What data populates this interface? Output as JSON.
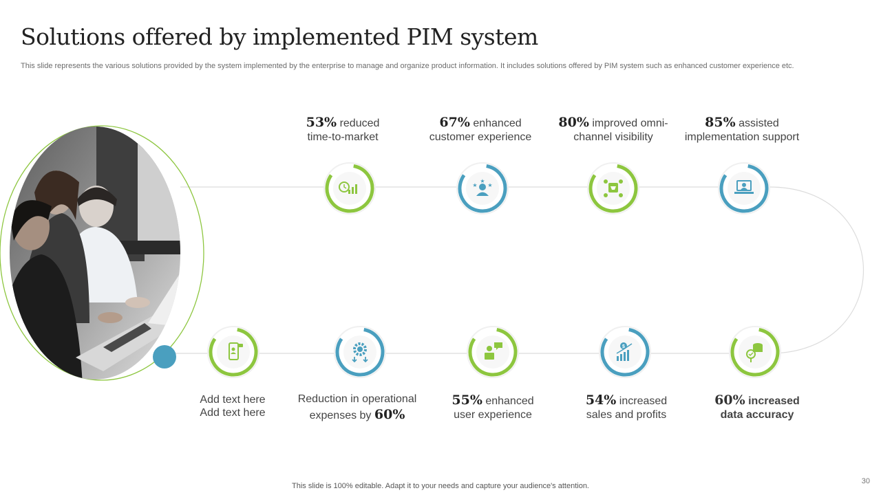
{
  "title": "Solutions offered by implemented PIM system",
  "subtitle": "This slide represents the various solutions provided by the system implemented by the enterprise to manage and organize product information. It includes solutions offered by PIM system such as enhanced customer experience etc.",
  "colors": {
    "green": "#8dc63f",
    "blue": "#4a9fbf",
    "line": "#d9d9d9",
    "dot": "#4a9fbf"
  },
  "top_items": [
    {
      "pct": "53%",
      "text1": "reduced",
      "text2": "time-to-market",
      "icon": "clock-growth-icon"
    },
    {
      "pct": "67%",
      "text1": "enhanced",
      "text2": "customer experience",
      "icon": "customer-stars-icon"
    },
    {
      "pct": "80%",
      "text1": "improved omni-",
      "text2": "channel visibility",
      "icon": "omnichannel-cart-icon"
    },
    {
      "pct": "85%",
      "text1": "assisted",
      "text2": "implementation support",
      "icon": "laptop-support-icon"
    }
  ],
  "bottom_items": [
    {
      "line1": "Add text here",
      "line2": "Add text here",
      "icon": "mobile-user-icon"
    },
    {
      "line1": "Reduction in operational",
      "line2_pre": "expenses by",
      "pct": "60%",
      "icon": "cost-gear-icon"
    },
    {
      "pct": "55%",
      "text1": "enhanced",
      "text2": "user experience",
      "icon": "user-feedback-icon"
    },
    {
      "pct": "54%",
      "text1": "increased",
      "text2": "sales and profits",
      "icon": "sales-chart-icon"
    },
    {
      "pct": "60%",
      "text1": "increased",
      "text2": "data accuracy",
      "icon": "data-accuracy-icon"
    }
  ],
  "footer": "This slide is 100% editable. Adapt it to your needs and capture your audience's attention.",
  "page_number": "30"
}
